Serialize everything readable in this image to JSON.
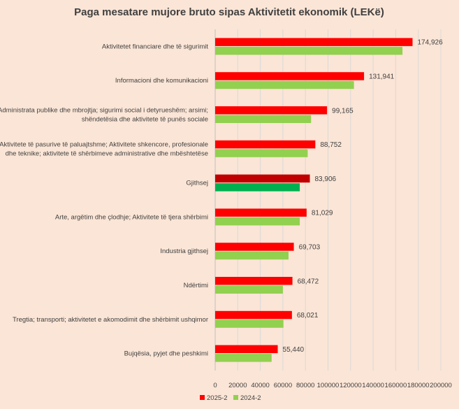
{
  "chart_data": {
    "type": "bar",
    "orientation": "horizontal",
    "title": "Paga mesatare mujore bruto  sipas Aktivitetit ekonomik (LEKë)",
    "xlabel": "",
    "ylabel": "",
    "xlim": [
      0,
      200000
    ],
    "ticks": [
      "0",
      "20000",
      "40000",
      "60000",
      "80000",
      "100000",
      "120000",
      "140000",
      "160000",
      "180000",
      "200000"
    ],
    "tick_values": [
      0,
      20000,
      40000,
      60000,
      80000,
      100000,
      120000,
      140000,
      160000,
      180000,
      200000
    ],
    "grid": true,
    "legend_position": "bottom",
    "categories": [
      [
        "Aktivitetet financiare dhe të sigurimit"
      ],
      [
        "Informacioni dhe komunikacioni"
      ],
      [
        "Administrata publike dhe mbrojtja; sigurimi social i detyrueshëm; arsimi;",
        "shëndetësia dhe aktivitete të punës sociale"
      ],
      [
        "Aktivitete të pasurive të paluajtshme; Aktivitete shkencore, profesionale",
        "dhe teknike; aktivitete të shërbimeve administrative dhe mbështetëse"
      ],
      [
        "Gjithsej"
      ],
      [
        "Arte, argëtim dhe çlodhje; Aktivitete të tjera shërbimi"
      ],
      [
        "Industria gjithsej"
      ],
      [
        "Ndërtimi"
      ],
      [
        "Tregtia; transporti; aktivitetet e akomodimit dhe shërbimit ushqimor"
      ],
      [
        "Bujqësia, pyjet dhe peshkimi"
      ]
    ],
    "series": [
      {
        "name": "2025-2",
        "color": "#ff0000",
        "values": [
          174926,
          131941,
          99165,
          88752,
          83906,
          81029,
          69703,
          68472,
          68021,
          55440
        ],
        "labels": [
          "174,926",
          "131,941",
          "99,165",
          "88,752",
          "83,906",
          "81,029",
          "69,703",
          "68,472",
          "68,021",
          "55,440"
        ]
      },
      {
        "name": "2024-2",
        "color": "#92d050",
        "values": [
          166000,
          123000,
          85000,
          82000,
          75000,
          75000,
          65000,
          60000,
          60500,
          50000
        ]
      }
    ],
    "highlight": {
      "category_index": 4,
      "colors": [
        "#c00000",
        "#00b050"
      ]
    }
  }
}
